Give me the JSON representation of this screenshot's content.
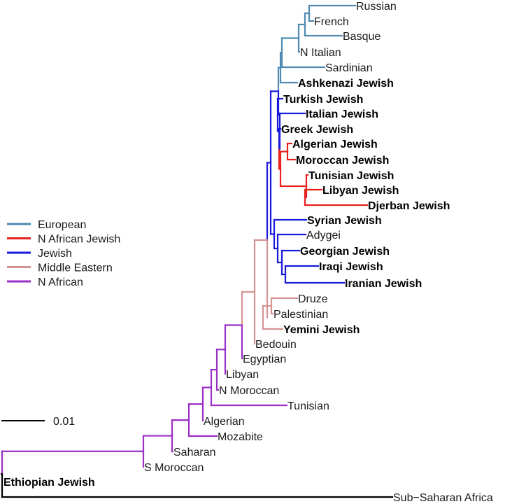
{
  "tree": {
    "scale_bar": {
      "label": "0.01"
    },
    "legend": [
      {
        "key": "european",
        "label": "European",
        "color": "#4f8ab3"
      },
      {
        "key": "nafjew",
        "label": "N African Jewish",
        "color": "#e8211f"
      },
      {
        "key": "jewish",
        "label": "Jewish",
        "color": "#1a1adc"
      },
      {
        "key": "mideast",
        "label": "Middle Eastern",
        "color": "#d49494"
      },
      {
        "key": "nafrican",
        "label": "N African",
        "color": "#9b2fc6"
      }
    ],
    "root_color": "#000000",
    "taxa": [
      {
        "label": "Russian",
        "group": "european",
        "bold": false
      },
      {
        "label": "French",
        "group": "european",
        "bold": false
      },
      {
        "label": "Basque",
        "group": "european",
        "bold": false
      },
      {
        "label": "N Italian",
        "group": "european",
        "bold": false
      },
      {
        "label": "Sardinian",
        "group": "european",
        "bold": false
      },
      {
        "label": "Ashkenazi Jewish",
        "group": "european",
        "bold": true
      },
      {
        "label": "Turkish Jewish",
        "group": "jewish",
        "bold": true
      },
      {
        "label": "Italian Jewish",
        "group": "jewish",
        "bold": true
      },
      {
        "label": "Greek Jewish",
        "group": "jewish",
        "bold": true
      },
      {
        "label": "Algerian Jewish",
        "group": "nafjew",
        "bold": true
      },
      {
        "label": "Moroccan Jewish",
        "group": "nafjew",
        "bold": true
      },
      {
        "label": "Tunisian Jewish",
        "group": "nafjew",
        "bold": true
      },
      {
        "label": "Libyan Jewish",
        "group": "nafjew",
        "bold": true
      },
      {
        "label": "Djerban Jewish",
        "group": "nafjew",
        "bold": true
      },
      {
        "label": "Syrian Jewish",
        "group": "jewish",
        "bold": true
      },
      {
        "label": "Adygei",
        "group": "jewish",
        "bold": false
      },
      {
        "label": "Georgian Jewish",
        "group": "jewish",
        "bold": true
      },
      {
        "label": "Iraqi Jewish",
        "group": "jewish",
        "bold": true
      },
      {
        "label": "Iranian Jewish",
        "group": "jewish",
        "bold": true
      },
      {
        "label": "Druze",
        "group": "mideast",
        "bold": false
      },
      {
        "label": "Palestinian",
        "group": "mideast",
        "bold": false
      },
      {
        "label": "Yemini Jewish",
        "group": "mideast",
        "bold": true
      },
      {
        "label": "Bedouin",
        "group": "mideast",
        "bold": false
      },
      {
        "label": "Egyptian",
        "group": "nafrican",
        "bold": false
      },
      {
        "label": "Libyan",
        "group": "nafrican",
        "bold": false
      },
      {
        "label": "N Moroccan",
        "group": "nafrican",
        "bold": false
      },
      {
        "label": "Tunisian",
        "group": "nafrican",
        "bold": false
      },
      {
        "label": "Algerian",
        "group": "nafrican",
        "bold": false
      },
      {
        "label": "Mozabite",
        "group": "nafrican",
        "bold": false
      },
      {
        "label": "Saharan",
        "group": "nafrican",
        "bold": false
      },
      {
        "label": "S Moroccan",
        "group": "nafrican",
        "bold": false
      },
      {
        "label": "Ethiopian Jewish",
        "group": "root",
        "bold": true
      },
      {
        "label": "Sub−Saharan Africa",
        "group": "root",
        "bold": false
      }
    ]
  }
}
